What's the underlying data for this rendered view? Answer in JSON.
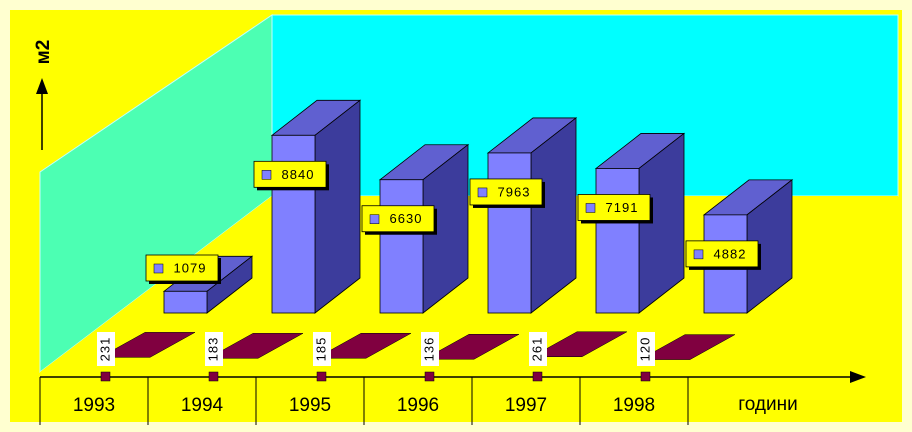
{
  "chart_data": {
    "type": "bar3d",
    "categories": [
      "1993",
      "1994",
      "1995",
      "1996",
      "1997",
      "1998"
    ],
    "series": [
      {
        "color": "#800040",
        "values": [
          231,
          183,
          185,
          136,
          261,
          120
        ]
      },
      {
        "color": "#8080ff",
        "values": [
          1079,
          8840,
          6630,
          7963,
          7191,
          4882
        ]
      }
    ],
    "x_label": "години",
    "y_label": "м2",
    "ylim": [
      0,
      10000
    ],
    "wall_color": "#00ffff",
    "floor_color": "#ffff00"
  }
}
